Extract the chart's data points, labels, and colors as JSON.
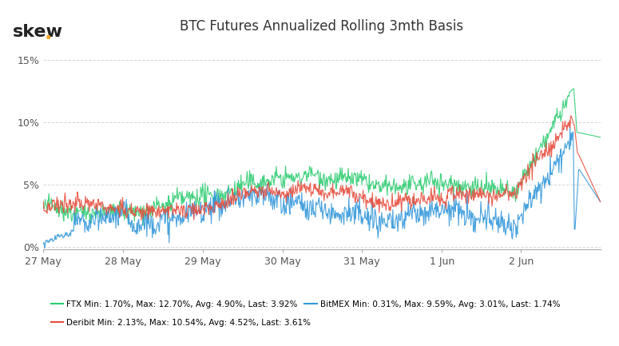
{
  "title": "BTC Futures Annualized Rolling 3mth Basis",
  "logo_text": "skew",
  "logo_dot_color": "#F5A623",
  "background_color": "#ffffff",
  "ylim": [
    -0.002,
    0.165
  ],
  "yticks": [
    0.0,
    0.05,
    0.1,
    0.15
  ],
  "ytick_labels": [
    "0%",
    "5%",
    "10%",
    "15%"
  ],
  "grid_color": "#cccccc",
  "grid_style": "--",
  "ftx_color": "#2ecc71",
  "bitmex_color": "#3498db",
  "deribit_color": "#e74c3c",
  "n_points": 900,
  "legend": {
    "ftx": "FTX Min: 1.70%, Max: 12.70%, Avg: 4.90%, Last: 3.92%",
    "bitmex": "BitMEX Min: 0.31%, Max: 9.59%, Avg: 3.01%, Last: 1.74%",
    "deribit": "Deribit Min: 2.13%, Max: 10.54%, Avg: 4.52%, Last: 3.61%"
  },
  "x_tick_labels": [
    "27 May",
    "28 May",
    "29 May",
    "30 May",
    "31 May",
    "1 Jun",
    "2 Jun"
  ],
  "x_tick_positions": [
    0,
    128,
    257,
    386,
    514,
    643,
    771
  ]
}
